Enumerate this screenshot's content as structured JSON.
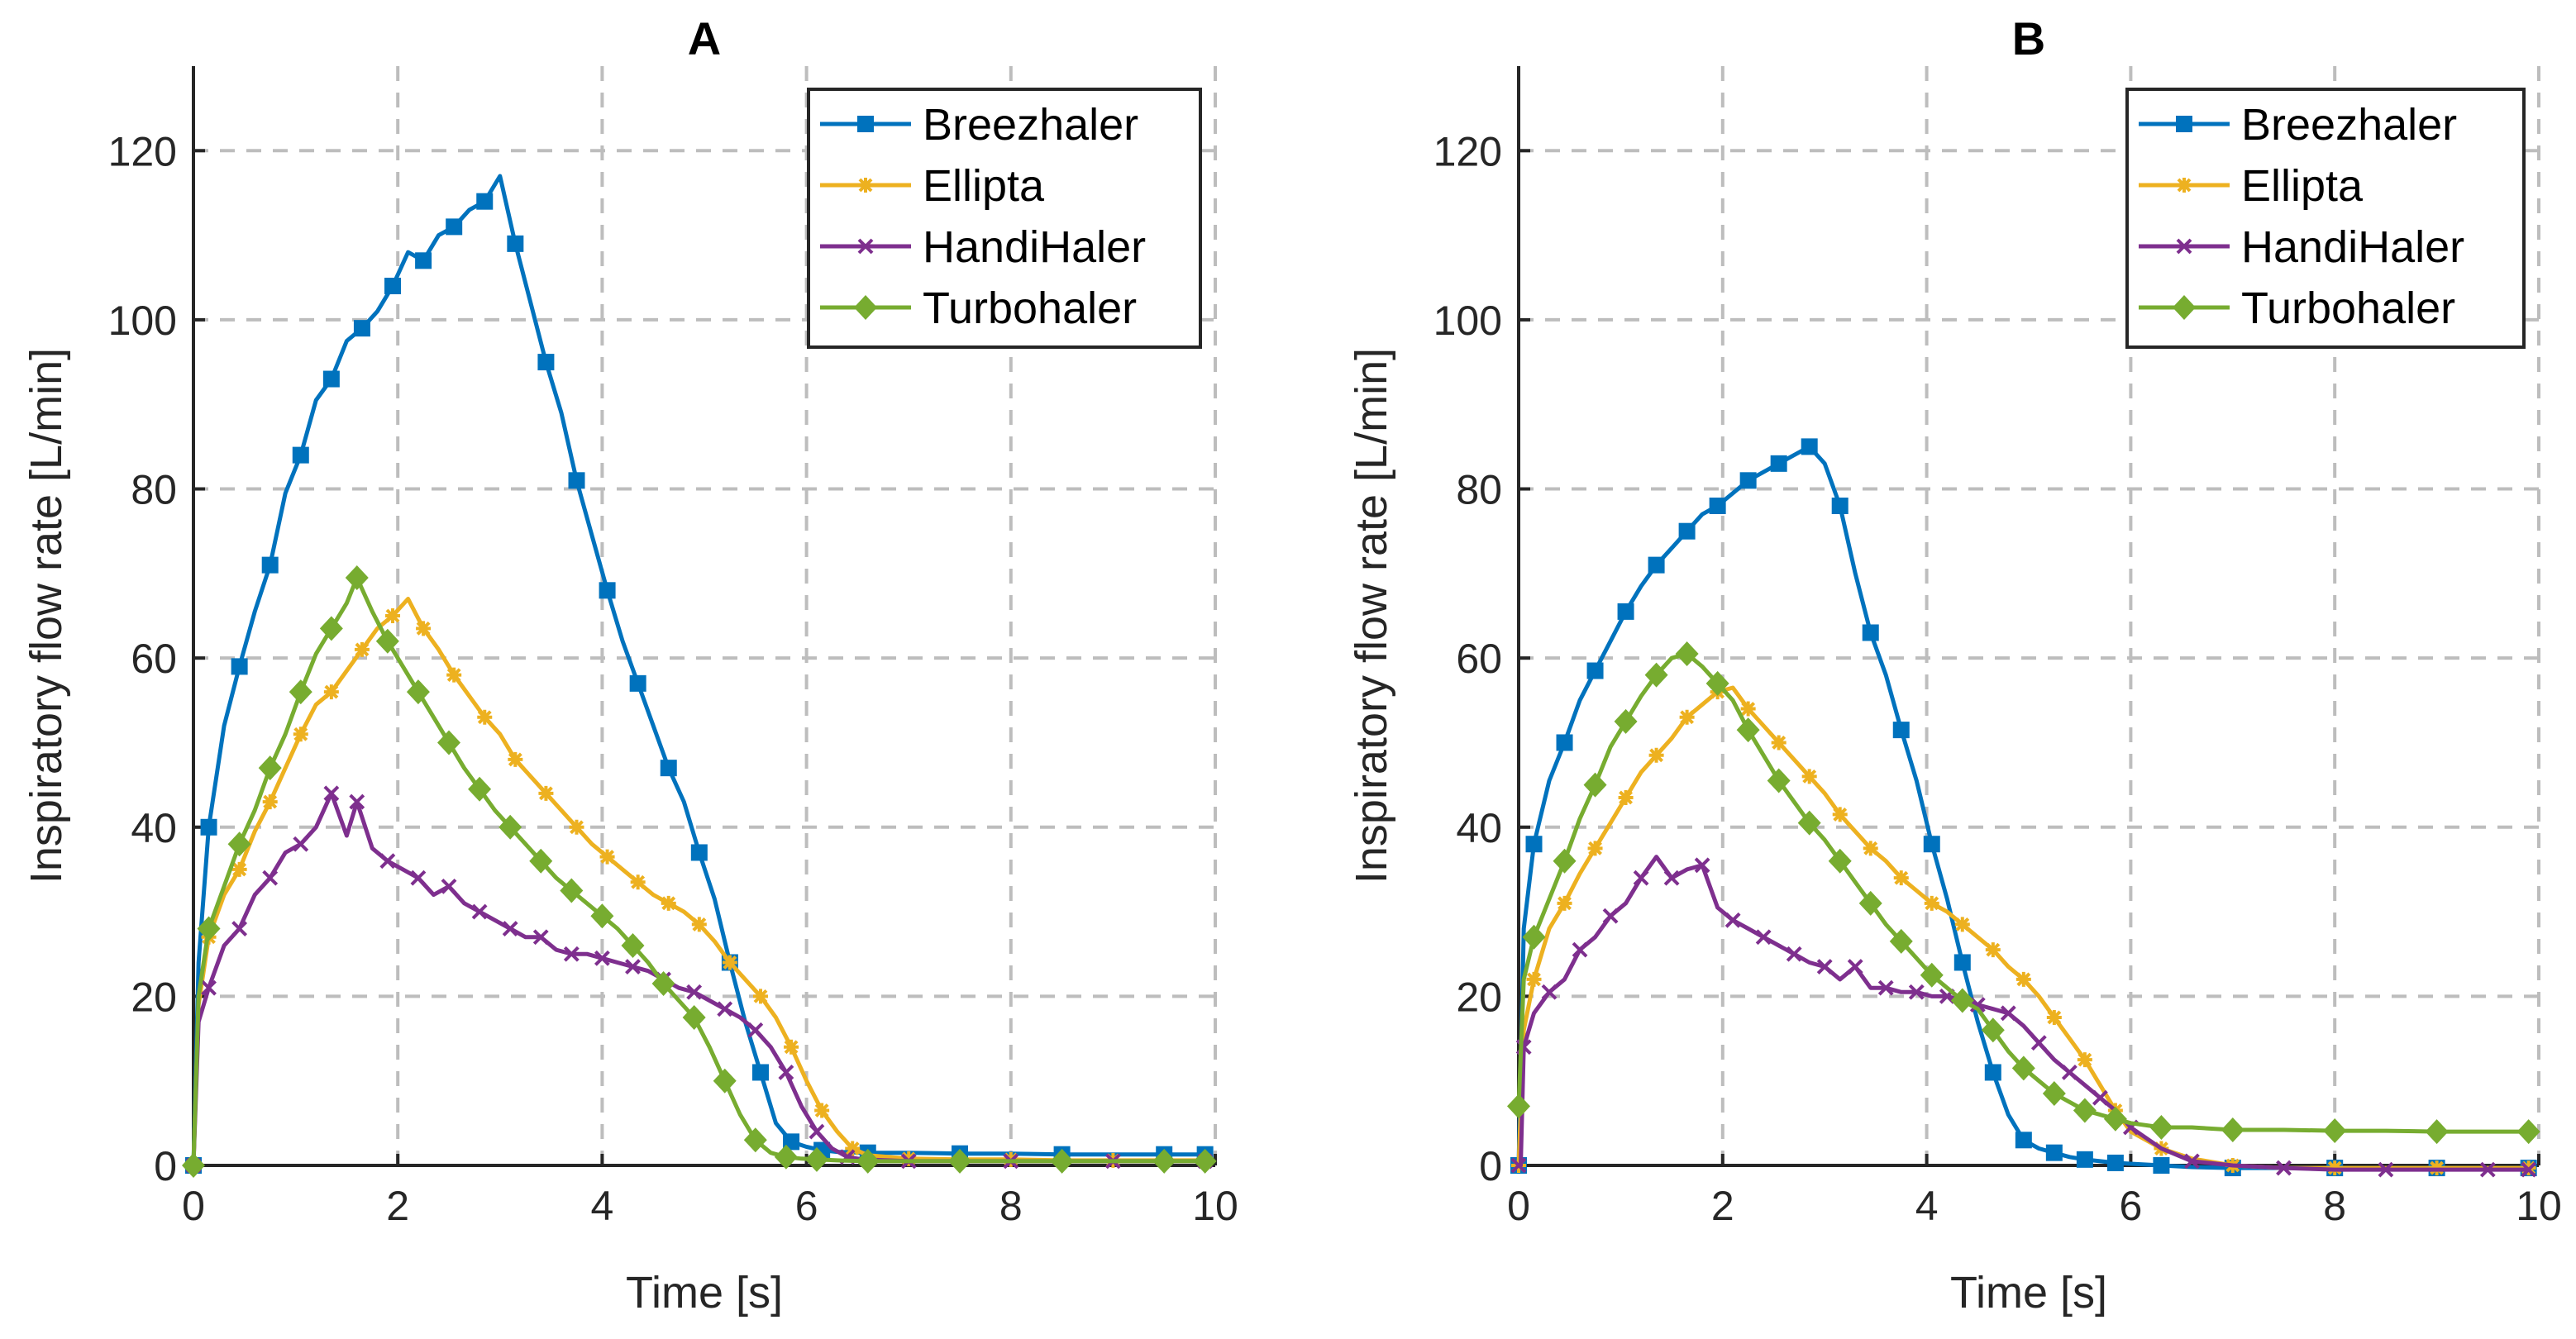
{
  "chart_data": [
    {
      "type": "line",
      "title": "A",
      "xlabel": "Time [s]",
      "ylabel": "Inspiratory flow rate [L/min]",
      "xlim": [
        0,
        10
      ],
      "ylim": [
        0,
        130
      ],
      "xticks": [
        0,
        2,
        4,
        6,
        8,
        10
      ],
      "yticks": [
        0,
        20,
        40,
        60,
        80,
        100,
        120
      ],
      "grid": true,
      "legend_position": "top-right",
      "series": [
        {
          "name": "Breezhaler",
          "color": "#0072BD",
          "marker": "square",
          "x": [
            0,
            0.05,
            0.15,
            0.3,
            0.45,
            0.6,
            0.75,
            0.9,
            1.05,
            1.2,
            1.35,
            1.5,
            1.65,
            1.8,
            1.95,
            2.1,
            2.25,
            2.4,
            2.55,
            2.7,
            2.85,
            3.0,
            3.15,
            3.3,
            3.45,
            3.6,
            3.75,
            3.9,
            4.05,
            4.2,
            4.35,
            4.5,
            4.65,
            4.8,
            4.95,
            5.1,
            5.25,
            5.4,
            5.55,
            5.7,
            5.85,
            6.0,
            6.15,
            6.3,
            6.6,
            7.0,
            7.5,
            8.0,
            8.5,
            9.0,
            9.5,
            9.9
          ],
          "y": [
            0,
            24,
            40,
            52,
            59,
            65.5,
            71,
            79.5,
            84,
            90.5,
            93,
            97.5,
            99,
            101,
            104,
            108,
            107,
            110,
            111,
            113,
            114,
            117,
            109,
            102,
            95,
            89,
            81,
            74.5,
            68,
            62,
            57,
            52,
            47,
            43,
            37,
            31.5,
            24,
            17,
            11,
            5,
            2.8,
            2.2,
            1.8,
            1.6,
            1.5,
            1.5,
            1.4,
            1.4,
            1.3,
            1.3,
            1.3,
            1.3
          ]
        },
        {
          "name": "Ellipta",
          "color": "#EDB120",
          "marker": "star",
          "x": [
            0,
            0.05,
            0.15,
            0.3,
            0.45,
            0.6,
            0.75,
            0.9,
            1.05,
            1.2,
            1.35,
            1.5,
            1.65,
            1.8,
            1.95,
            2.1,
            2.25,
            2.4,
            2.55,
            2.7,
            2.85,
            3.0,
            3.15,
            3.3,
            3.45,
            3.6,
            3.75,
            3.9,
            4.05,
            4.2,
            4.35,
            4.5,
            4.65,
            4.8,
            4.95,
            5.1,
            5.25,
            5.4,
            5.55,
            5.7,
            5.85,
            6.0,
            6.15,
            6.3,
            6.45,
            6.6,
            7.0,
            7.5,
            8.0,
            8.5,
            9.0,
            9.5,
            9.9
          ],
          "y": [
            0,
            19,
            27,
            32,
            35,
            39.5,
            43,
            47,
            51,
            54.5,
            56,
            58.5,
            61,
            63.5,
            65,
            67,
            63.5,
            61,
            58,
            55.5,
            53,
            51,
            48,
            46,
            44,
            42,
            40,
            38,
            36.5,
            35,
            33.5,
            32,
            31,
            30,
            28.5,
            26.5,
            24,
            22,
            20,
            17.5,
            14,
            10,
            6.5,
            4,
            2,
            1.2,
            0.8,
            0.7,
            0.7,
            0.6,
            0.6,
            0.6,
            0.6
          ]
        },
        {
          "name": "HandiHaler",
          "color": "#7E2F8E",
          "marker": "x",
          "x": [
            0,
            0.05,
            0.15,
            0.3,
            0.45,
            0.6,
            0.75,
            0.9,
            1.05,
            1.2,
            1.35,
            1.5,
            1.6,
            1.75,
            1.9,
            2.05,
            2.2,
            2.35,
            2.5,
            2.65,
            2.8,
            2.95,
            3.1,
            3.25,
            3.4,
            3.55,
            3.7,
            3.85,
            4.0,
            4.15,
            4.3,
            4.45,
            4.6,
            4.75,
            4.9,
            5.05,
            5.2,
            5.35,
            5.5,
            5.65,
            5.8,
            5.95,
            6.1,
            6.25,
            6.4,
            6.55,
            7.0,
            7.5,
            8.0,
            8.5,
            9.0,
            9.5,
            9.9
          ],
          "y": [
            0,
            17,
            21,
            26,
            28,
            32,
            34,
            37,
            38,
            40,
            44,
            39,
            43,
            37.5,
            36,
            35,
            34,
            32,
            33,
            31,
            30,
            29,
            28,
            27,
            27,
            25.5,
            25,
            25,
            24.5,
            24,
            23.5,
            23,
            22,
            21,
            20.5,
            19.5,
            18.5,
            17.5,
            16,
            14,
            11,
            7,
            4,
            2,
            1,
            0.7,
            0.5,
            0.5,
            0.5,
            0.5,
            0.5,
            0.5,
            0.5
          ]
        },
        {
          "name": "Turbohaler",
          "color": "#77AC30",
          "marker": "diamond",
          "x": [
            0,
            0.05,
            0.15,
            0.3,
            0.45,
            0.6,
            0.75,
            0.9,
            1.05,
            1.2,
            1.35,
            1.5,
            1.6,
            1.75,
            1.9,
            2.05,
            2.2,
            2.35,
            2.5,
            2.65,
            2.8,
            2.95,
            3.1,
            3.25,
            3.4,
            3.55,
            3.7,
            3.85,
            4.0,
            4.15,
            4.3,
            4.45,
            4.6,
            4.75,
            4.9,
            5.05,
            5.2,
            5.35,
            5.5,
            5.65,
            5.8,
            5.95,
            6.1,
            6.3,
            6.6,
            7.0,
            7.5,
            8.0,
            8.5,
            9.0,
            9.5,
            9.9
          ],
          "y": [
            0,
            20,
            28,
            33,
            38,
            42,
            47,
            51,
            56,
            60.5,
            63.5,
            66.5,
            69.5,
            65.5,
            62,
            59,
            56,
            53,
            50,
            47,
            44.5,
            42,
            40,
            38,
            36,
            34,
            32.5,
            31,
            29.5,
            28,
            26,
            24,
            21.5,
            19.5,
            17.5,
            14,
            10,
            6,
            3,
            1.5,
            1,
            0.8,
            0.7,
            0.6,
            0.5,
            0.5,
            0.5,
            0.5,
            0.5,
            0.5,
            0.5,
            0.5
          ]
        }
      ]
    },
    {
      "type": "line",
      "title": "B",
      "xlabel": "Time [s]",
      "ylabel": "Inspiratory flow rate [L/min]",
      "xlim": [
        0,
        10
      ],
      "ylim": [
        0,
        130
      ],
      "xticks": [
        0,
        2,
        4,
        6,
        8,
        10
      ],
      "yticks": [
        0,
        20,
        40,
        60,
        80,
        100,
        120
      ],
      "grid": true,
      "legend_position": "top-right",
      "series": [
        {
          "name": "Breezhaler",
          "color": "#0072BD",
          "marker": "square",
          "x": [
            0,
            0.05,
            0.15,
            0.3,
            0.45,
            0.6,
            0.75,
            0.9,
            1.05,
            1.2,
            1.35,
            1.5,
            1.65,
            1.8,
            1.95,
            2.1,
            2.25,
            2.4,
            2.55,
            2.7,
            2.85,
            3.0,
            3.15,
            3.3,
            3.45,
            3.6,
            3.75,
            3.9,
            4.05,
            4.2,
            4.35,
            4.5,
            4.65,
            4.8,
            4.95,
            5.1,
            5.25,
            5.4,
            5.55,
            5.7,
            5.85,
            6.0,
            6.3,
            6.6,
            7.0,
            7.5,
            8.0,
            8.5,
            9.0,
            9.5,
            9.9
          ],
          "y": [
            0,
            28,
            38,
            45.5,
            50,
            55,
            58.5,
            62,
            65.5,
            68.5,
            71,
            73,
            75,
            77,
            78,
            79.5,
            81,
            82,
            83,
            84,
            85,
            83,
            78,
            70,
            63,
            58,
            51.5,
            45.5,
            38,
            31.5,
            24,
            17,
            11,
            6,
            3,
            2,
            1.5,
            1,
            0.7,
            0.5,
            0.3,
            0.2,
            0,
            -0.2,
            -0.3,
            -0.3,
            -0.3,
            -0.3,
            -0.3,
            -0.3,
            -0.3
          ]
        },
        {
          "name": "Ellipta",
          "color": "#EDB120",
          "marker": "star",
          "x": [
            0,
            0.05,
            0.15,
            0.3,
            0.45,
            0.6,
            0.75,
            0.9,
            1.05,
            1.2,
            1.35,
            1.5,
            1.65,
            1.8,
            1.95,
            2.1,
            2.25,
            2.4,
            2.55,
            2.7,
            2.85,
            3.0,
            3.15,
            3.3,
            3.45,
            3.6,
            3.75,
            3.9,
            4.05,
            4.2,
            4.35,
            4.5,
            4.65,
            4.8,
            4.95,
            5.1,
            5.25,
            5.4,
            5.55,
            5.7,
            5.85,
            6.0,
            6.3,
            6.6,
            7.0,
            7.5,
            8.0,
            8.5,
            9.0,
            9.5,
            9.9
          ],
          "y": [
            0,
            16,
            22,
            28,
            31,
            34.5,
            37.5,
            40.5,
            43.5,
            46.5,
            48.5,
            50.5,
            53,
            54.5,
            56,
            56.5,
            54,
            52,
            50,
            48,
            46,
            44,
            41.5,
            39.5,
            37.5,
            36,
            34,
            32.5,
            31,
            30,
            28.5,
            27,
            25.5,
            23.5,
            22,
            20,
            17.5,
            15,
            12.5,
            9.5,
            6.5,
            4,
            2,
            0.8,
            0,
            -0.3,
            -0.3,
            -0.3,
            -0.3,
            -0.3,
            -0.3
          ]
        },
        {
          "name": "HandiHaler",
          "color": "#7E2F8E",
          "marker": "x",
          "x": [
            0,
            0.02,
            0.05,
            0.15,
            0.3,
            0.45,
            0.6,
            0.75,
            0.9,
            1.05,
            1.2,
            1.35,
            1.5,
            1.65,
            1.8,
            1.95,
            2.1,
            2.25,
            2.4,
            2.55,
            2.7,
            2.85,
            3.0,
            3.15,
            3.3,
            3.45,
            3.6,
            3.75,
            3.9,
            4.05,
            4.2,
            4.35,
            4.5,
            4.65,
            4.8,
            4.95,
            5.1,
            5.25,
            5.4,
            5.55,
            5.7,
            5.85,
            6.0,
            6.3,
            6.6,
            7.0,
            7.5,
            8.0,
            8.5,
            9.0,
            9.5,
            9.9
          ],
          "y": [
            0,
            0,
            14,
            18,
            20.5,
            22,
            25.5,
            27,
            29.5,
            31,
            34,
            36.5,
            34,
            35,
            35.5,
            30.5,
            29,
            28,
            27,
            26,
            25,
            24,
            23.5,
            22,
            23.5,
            21,
            21,
            20.5,
            20.5,
            20,
            20,
            19.5,
            19,
            18.5,
            18,
            16.5,
            14.5,
            12.5,
            11,
            9.5,
            8,
            6.5,
            4.5,
            2,
            0.5,
            0,
            -0.3,
            -0.5,
            -0.5,
            -0.5,
            -0.5,
            -0.5
          ]
        },
        {
          "name": "Turbohaler",
          "color": "#77AC30",
          "marker": "diamond",
          "x": [
            0,
            0.05,
            0.15,
            0.3,
            0.45,
            0.6,
            0.75,
            0.9,
            1.05,
            1.2,
            1.35,
            1.5,
            1.65,
            1.8,
            1.95,
            2.1,
            2.25,
            2.4,
            2.55,
            2.7,
            2.85,
            3.0,
            3.15,
            3.3,
            3.45,
            3.6,
            3.75,
            3.9,
            4.05,
            4.2,
            4.35,
            4.5,
            4.65,
            4.8,
            4.95,
            5.1,
            5.25,
            5.4,
            5.55,
            5.7,
            5.85,
            6.0,
            6.3,
            6.6,
            7.0,
            7.5,
            8.0,
            8.5,
            9.0,
            9.5,
            9.9
          ],
          "y": [
            7,
            22,
            27,
            31.5,
            36,
            41,
            45,
            49.5,
            52.5,
            55.5,
            58,
            60,
            60.5,
            59,
            57,
            55,
            51.5,
            48.5,
            45.5,
            43,
            40.5,
            38.5,
            36,
            33.5,
            31,
            28.5,
            26.5,
            24.5,
            22.5,
            21,
            19.5,
            18.5,
            16,
            13.5,
            11.5,
            10,
            8.5,
            7.5,
            6.5,
            6,
            5.5,
            5,
            4.5,
            4.5,
            4.2,
            4.2,
            4.1,
            4.1,
            4.0,
            4.0,
            4.0
          ]
        }
      ]
    }
  ]
}
